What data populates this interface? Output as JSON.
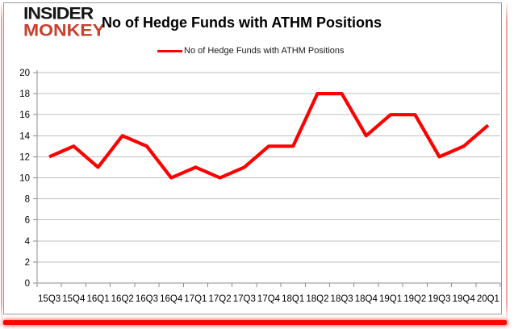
{
  "logo": {
    "line1": "INSIDER",
    "line2": "MONKEY"
  },
  "header": {
    "title": "No of Hedge Funds with ATHM Positions"
  },
  "legend": {
    "label": "No of Hedge Funds with ATHM Positions"
  },
  "colors": {
    "series": "#ff0000",
    "gridline": "#bfbfbf",
    "axis": "#8c8c8c",
    "tick_label": "#000000",
    "frame_border": "#9a9a9a",
    "logo_black": "#161616",
    "logo_red": "#c6402d",
    "pink_edge": "#f3a49f",
    "bottom_bar_red": "#fe0500"
  },
  "chart_data": {
    "type": "line",
    "title": "No of Hedge Funds with ATHM Positions",
    "categories": [
      "15Q3",
      "15Q4",
      "16Q1",
      "16Q2",
      "16Q3",
      "16Q4",
      "17Q1",
      "17Q2",
      "17Q3",
      "17Q4",
      "18Q1",
      "18Q2",
      "18Q3",
      "18Q4",
      "19Q1",
      "19Q2",
      "19Q3",
      "19Q4",
      "20Q1"
    ],
    "series": [
      {
        "name": "No of Hedge Funds with ATHM Positions",
        "values": [
          12,
          13,
          11,
          14,
          13,
          10,
          11,
          10,
          11,
          13,
          13,
          18,
          18,
          14,
          16,
          16,
          12,
          13,
          15
        ]
      }
    ],
    "xlabel": "",
    "ylabel": "",
    "ylim": [
      0,
      20
    ],
    "ytick_step": 2,
    "grid": "horizontal",
    "legend_position": "top-center"
  }
}
